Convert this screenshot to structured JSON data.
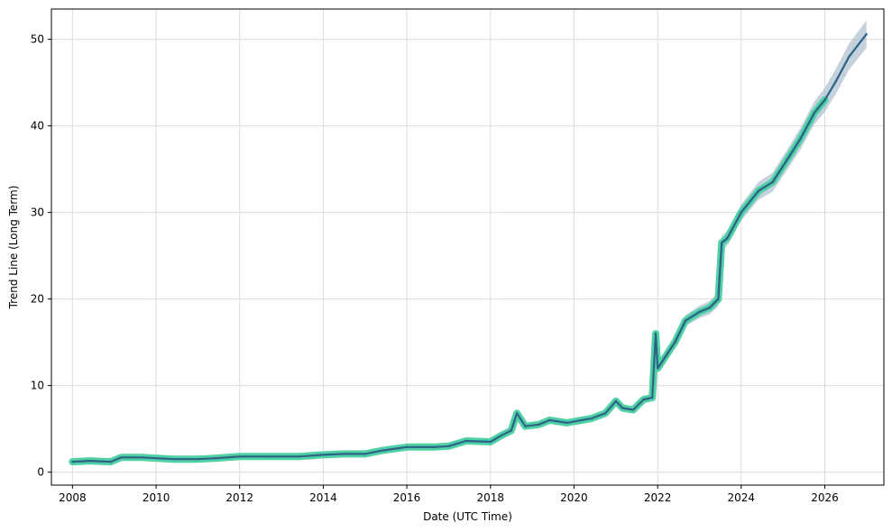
{
  "chart_data": {
    "type": "line",
    "title": "",
    "xlabel": "Date (UTC Time)",
    "ylabel": "Trend Line (Long Term)",
    "xlim": [
      "2007-07-01",
      "2027-06-01"
    ],
    "ylim": [
      -1.5,
      53.5
    ],
    "grid": true,
    "legend": "none",
    "x_ticks": [
      "2008",
      "2010",
      "2012",
      "2014",
      "2016",
      "2018",
      "2020",
      "2022",
      "2024",
      "2026"
    ],
    "y_ticks": [
      0,
      10,
      20,
      30,
      40,
      50
    ],
    "series": [
      {
        "role": "historical",
        "color": "#4fd1a5",
        "x": [
          "2008-01-01",
          "2008-06-01",
          "2008-12-01",
          "2009-03-01",
          "2009-09-01",
          "2010-06-01",
          "2011-01-01",
          "2011-06-01",
          "2012-01-01",
          "2012-09-01",
          "2013-06-01",
          "2014-01-01",
          "2014-07-01",
          "2015-01-01",
          "2015-06-01",
          "2016-01-01",
          "2016-09-01",
          "2017-01-01",
          "2017-06-01",
          "2018-01-01",
          "2018-04-01",
          "2018-07-01",
          "2018-08-20",
          "2018-11-01",
          "2019-03-01",
          "2019-06-01",
          "2019-11-01",
          "2020-06-01",
          "2020-10-01",
          "2021-01-01",
          "2021-03-01",
          "2021-06-01",
          "2021-09-01",
          "2021-11-15",
          "2021-12-15",
          "2022-01-01",
          "2022-06-01",
          "2022-09-01",
          "2023-01-01",
          "2023-04-01",
          "2023-06-15",
          "2023-07-15",
          "2023-09-01",
          "2024-01-01",
          "2024-06-01",
          "2024-10-01",
          "2025-02-01",
          "2025-06-01",
          "2025-10-01",
          "2026-01-01"
        ],
        "values": [
          1.2,
          1.3,
          1.2,
          1.7,
          1.7,
          1.5,
          1.5,
          1.6,
          1.8,
          1.8,
          1.8,
          2.0,
          2.1,
          2.1,
          2.5,
          2.9,
          2.9,
          3.0,
          3.6,
          3.5,
          4.2,
          4.8,
          6.8,
          5.3,
          5.5,
          6.0,
          5.7,
          6.2,
          6.8,
          8.2,
          7.4,
          7.2,
          8.4,
          8.6,
          16.0,
          12.0,
          15.0,
          17.5,
          18.5,
          19.0,
          20.0,
          26.5,
          27.0,
          30.0,
          32.5,
          33.5,
          36.0,
          38.5,
          41.5,
          43.0
        ]
      },
      {
        "role": "forecast",
        "color": "#2c6386",
        "band_color": "#9eb4c8",
        "x": [
          "2022-01-01",
          "2022-06-01",
          "2022-09-01",
          "2023-01-01",
          "2023-04-01",
          "2023-06-15",
          "2023-07-15",
          "2023-09-01",
          "2024-01-01",
          "2024-06-01",
          "2024-10-01",
          "2025-02-01",
          "2025-06-01",
          "2025-10-01",
          "2026-01-01",
          "2026-04-01",
          "2026-08-01",
          "2026-12-31"
        ],
        "values": [
          12.0,
          15.0,
          17.5,
          18.5,
          19.0,
          20.0,
          26.5,
          27.0,
          30.0,
          32.5,
          33.5,
          36.0,
          38.5,
          41.5,
          43.0,
          45.0,
          48.0,
          50.6
        ]
      }
    ]
  }
}
